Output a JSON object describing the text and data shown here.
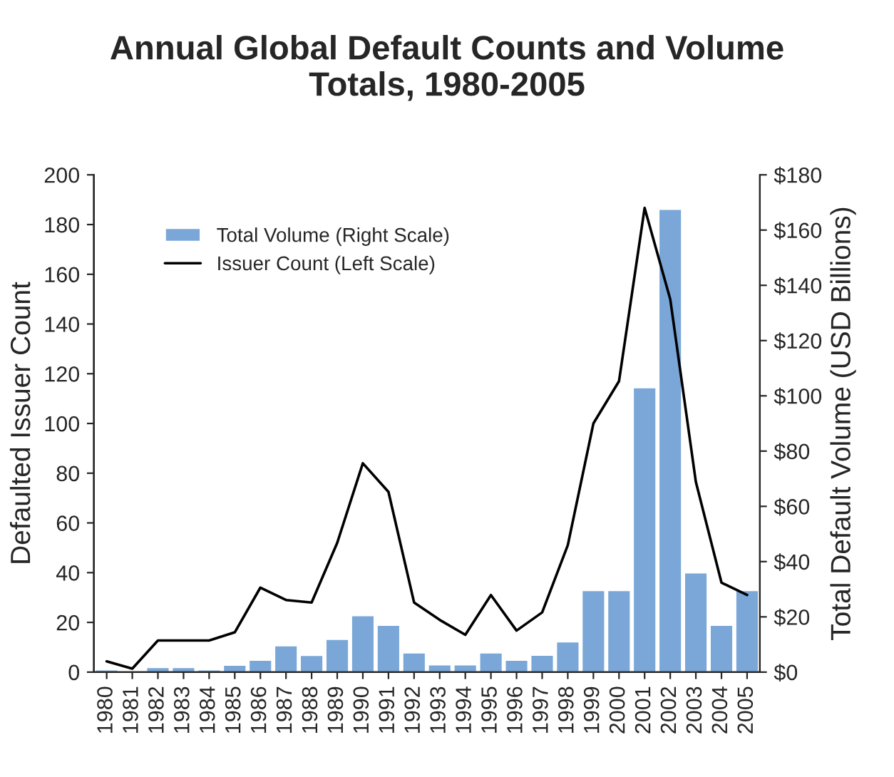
{
  "chart_data": {
    "type": "bar",
    "title": "Annual Global Default Counts and Volume\nTotals, 1980-2005",
    "ylabel": "Defaulted Issuer Count",
    "y2label": "Total Default Volume (USD Billions)",
    "categories": [
      "1980",
      "1981",
      "1982",
      "1983",
      "1984",
      "1985",
      "1986",
      "1987",
      "1988",
      "1989",
      "1990",
      "1991",
      "1992",
      "1993",
      "1994",
      "1995",
      "1996",
      "1997",
      "1998",
      "1999",
      "2000",
      "2001",
      "2002",
      "2003",
      "2004",
      "2005"
    ],
    "series": [
      {
        "name": "Total Volume (Right Scale)",
        "axis": "y2",
        "color": "#7aa7d8",
        "values": [
          0.9,
          null,
          1.7,
          1.7,
          0.9,
          2.6,
          4.4,
          9.6,
          6.1,
          11.9,
          20.5,
          17,
          7,
          2.7,
          2.7,
          7,
          4.4,
          6.2,
          11,
          29.6,
          29.6,
          103,
          167.6,
          36,
          17,
          29.6
        ]
      },
      {
        "name": "Issuer Count (Left Scale)",
        "type": "line",
        "color": "#000000",
        "values": [
          4.3,
          1.4,
          12.7,
          12.7,
          12.7,
          16,
          34,
          29,
          28,
          52,
          84,
          72.5,
          28,
          21,
          15,
          31,
          16.7,
          24,
          51,
          100,
          117,
          186.7,
          150,
          76.5,
          36,
          31
        ]
      }
    ],
    "ylim": [
      0,
      200
    ],
    "yticks": [
      0,
      20,
      40,
      60,
      80,
      100,
      120,
      140,
      160,
      180,
      200
    ],
    "y2lim": [
      0,
      180
    ],
    "y2ticks": [
      {
        "value": 0,
        "label": "$0"
      },
      {
        "value": 20,
        "label": "$20"
      },
      {
        "value": 40,
        "label": "$40"
      },
      {
        "value": 60,
        "label": "$60"
      },
      {
        "value": 80,
        "label": "$80"
      },
      {
        "value": 100,
        "label": "$100"
      },
      {
        "value": 120,
        "label": "$120"
      },
      {
        "value": 140,
        "label": "$140"
      },
      {
        "value": 160,
        "label": "$160"
      },
      {
        "value": 180,
        "label": "$180"
      }
    ],
    "legend": "top left",
    "grid": false,
    "marker": "none",
    "line_style": "solid"
  }
}
